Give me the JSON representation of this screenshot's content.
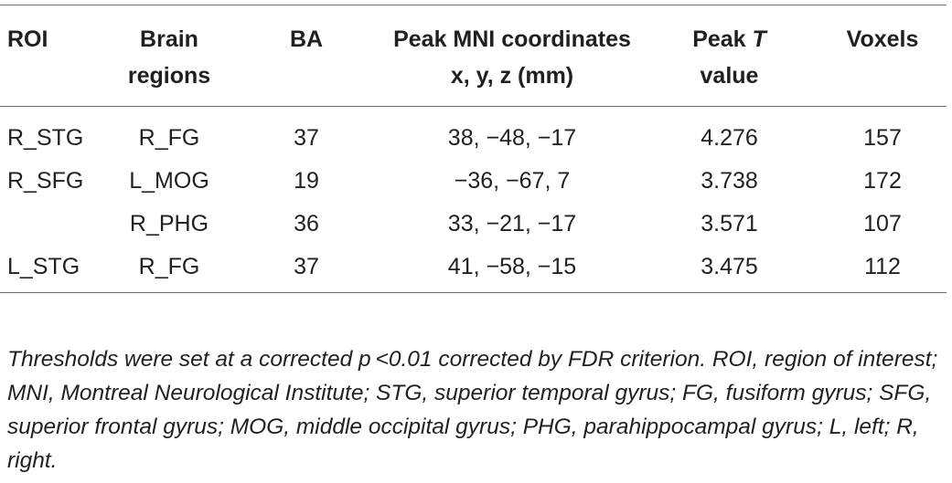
{
  "table": {
    "header": [
      "ROI",
      "Brain regions",
      "BA",
      "Peak MNI coordinates x, y, z (mm)",
      "Voxels"
    ],
    "header_t_value": [
      "Peak",
      "T",
      "value"
    ],
    "rows": [
      [
        "R_STG",
        "R_FG",
        "37",
        "38, −48, −17",
        "4.276",
        "157"
      ],
      [
        "R_SFG",
        "L_MOG",
        "19",
        "−36, −67, 7",
        "3.738",
        "172"
      ],
      [
        null,
        "R_PHG",
        "36",
        "33, −21, −17",
        "3.571",
        "107"
      ],
      [
        "L_STG",
        "R_FG",
        "37",
        "41, −58, −15",
        "3.475",
        "112"
      ]
    ],
    "footnote": "Thresholds were set at a corrected p <0.01 corrected by FDR criterion. ROI, region of interest; MNI, Montreal Neurological Institute; STG, superior temporal gyrus; FG, fusiform gyrus; SFG, superior frontal gyrus; MOG, middle occipital gyrus; PHG, parahippocampal gyrus; L, left; R, right."
  }
}
